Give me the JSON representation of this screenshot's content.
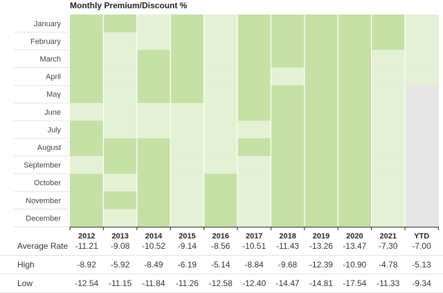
{
  "chart_data": {
    "type": "heatmap",
    "title": "Monthly Premium/Discount %",
    "months": [
      "January",
      "February",
      "March",
      "April",
      "May",
      "June",
      "July",
      "August",
      "September",
      "October",
      "November",
      "December"
    ],
    "years": [
      "2012",
      "2013",
      "2014",
      "2015",
      "2016",
      "2017",
      "2018",
      "2019",
      "2020",
      "2021",
      "YTD"
    ],
    "colors": {
      "dark": "#c5e0a4",
      "light": "#e4f1d5",
      "empty": "#e6e6e6",
      "separator": "#ffffff"
    },
    "levels": [
      [
        "dark",
        "dark",
        "light",
        "dark",
        "light",
        "dark",
        "dark",
        "dark",
        "dark",
        "dark",
        "light"
      ],
      [
        "dark",
        "light",
        "light",
        "dark",
        "light",
        "dark",
        "dark",
        "dark",
        "dark",
        "dark",
        "light"
      ],
      [
        "dark",
        "light",
        "dark",
        "dark",
        "light",
        "dark",
        "dark",
        "dark",
        "dark",
        "light",
        "light"
      ],
      [
        "dark",
        "light",
        "dark",
        "dark",
        "light",
        "dark",
        "light",
        "dark",
        "dark",
        "light",
        "light"
      ],
      [
        "dark",
        "light",
        "dark",
        "dark",
        "light",
        "dark",
        "dark",
        "dark",
        "dark",
        "light",
        "empty"
      ],
      [
        "light",
        "light",
        "light",
        "light",
        "light",
        "dark",
        "dark",
        "dark",
        "dark",
        "light",
        "empty"
      ],
      [
        "dark",
        "light",
        "light",
        "light",
        "light",
        "light",
        "dark",
        "dark",
        "dark",
        "light",
        "empty"
      ],
      [
        "dark",
        "dark",
        "dark",
        "light",
        "light",
        "dark",
        "dark",
        "dark",
        "dark",
        "light",
        "empty"
      ],
      [
        "light",
        "dark",
        "dark",
        "light",
        "light",
        "light",
        "dark",
        "dark",
        "dark",
        "light",
        "empty"
      ],
      [
        "dark",
        "light",
        "dark",
        "light",
        "dark",
        "light",
        "dark",
        "dark",
        "dark",
        "light",
        "empty"
      ],
      [
        "dark",
        "dark",
        "dark",
        "light",
        "dark",
        "light",
        "dark",
        "dark",
        "dark",
        "light",
        "empty"
      ],
      [
        "dark",
        "light",
        "dark",
        "light",
        "dark",
        "light",
        "dark",
        "dark",
        "dark",
        "light",
        "empty"
      ]
    ],
    "stats": [
      {
        "label": "Average Rate",
        "values": [
          "-11.21",
          "-9.08",
          "-10.52",
          "-9.14",
          "-8.56",
          "-10.51",
          "-11.43",
          "-13.26",
          "-13.47",
          "-7.30",
          "-7.00"
        ]
      },
      {
        "label": "High",
        "values": [
          "-8.92",
          "-5.92",
          "-8.49",
          "-6.19",
          "-5.14",
          "-8.84",
          "-9.68",
          "-12.39",
          "-10.90",
          "-4.78",
          "-5.13"
        ]
      },
      {
        "label": "Low",
        "values": [
          "-12.54",
          "-11.15",
          "-11.84",
          "-11.26",
          "-12.58",
          "-12.40",
          "-14.47",
          "-14.81",
          "-17.54",
          "-11.33",
          "-9.34"
        ]
      }
    ]
  }
}
